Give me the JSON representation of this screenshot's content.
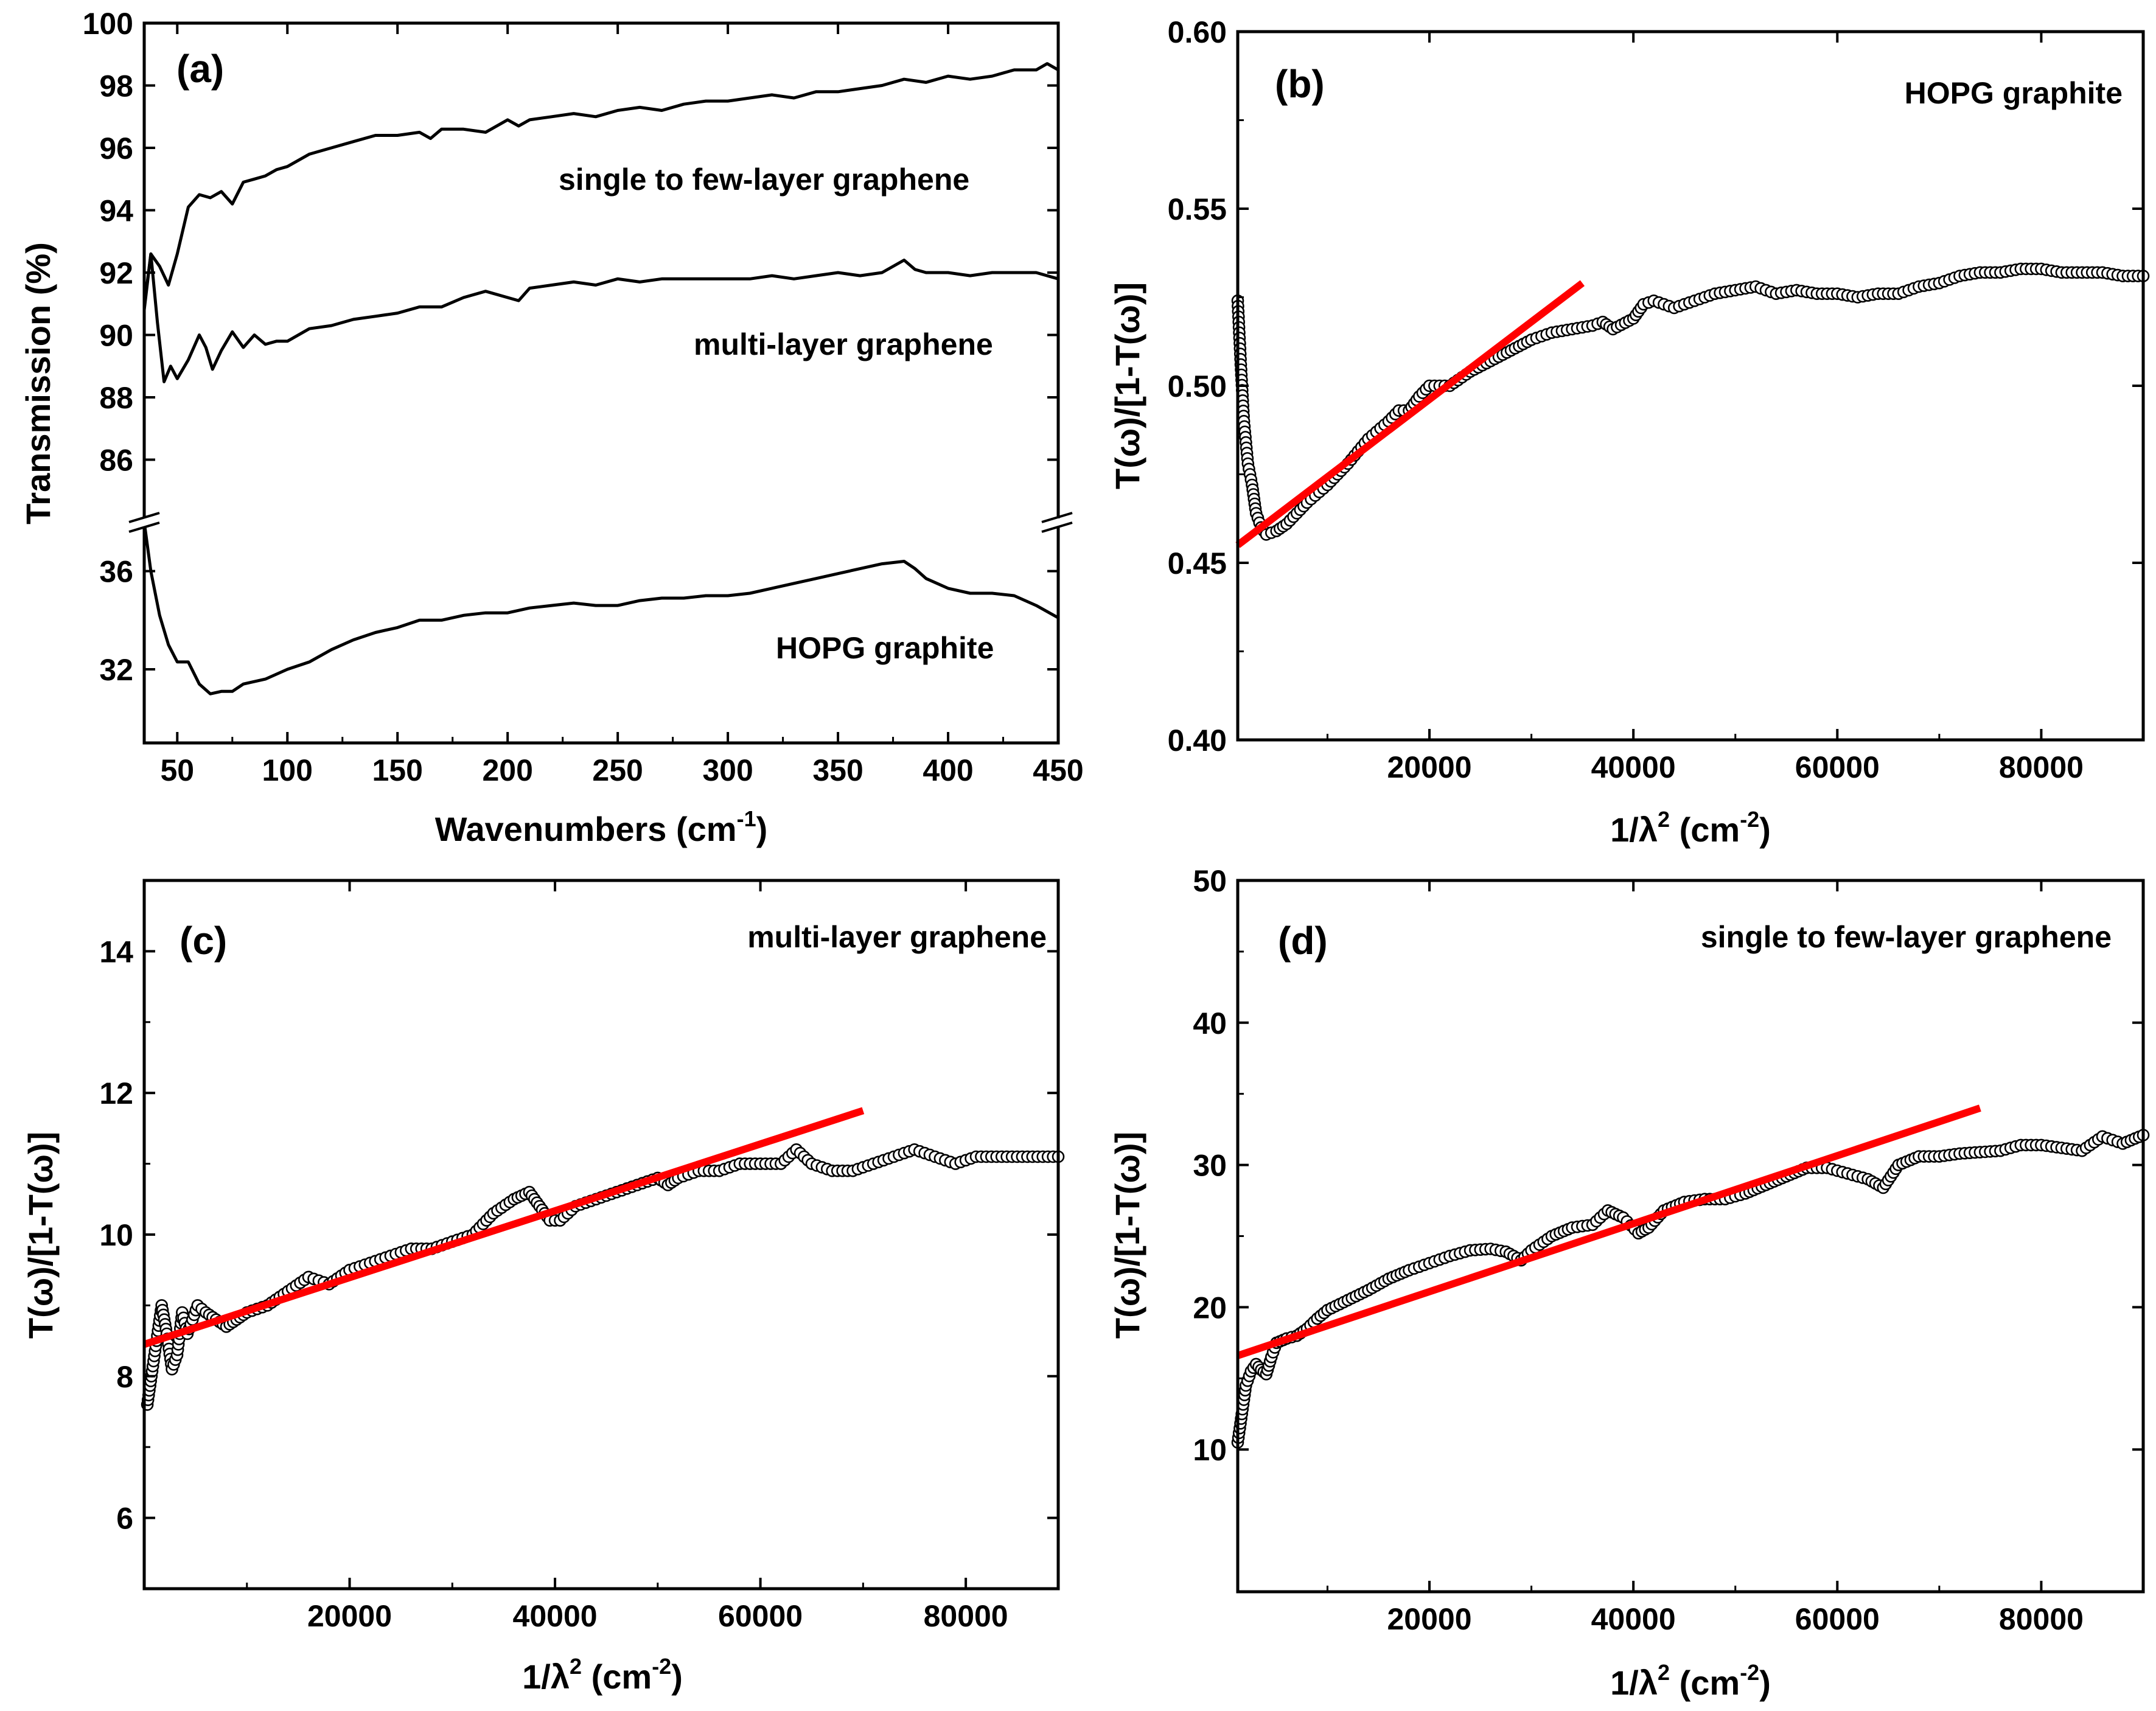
{
  "figure": {
    "colors": {
      "axis": "#000000",
      "data": "#000000",
      "fit": "#ff0000",
      "background": "#ffffff"
    }
  },
  "chart_data": [
    {
      "id": "a",
      "type": "line",
      "panel_label": "(a)",
      "xlabel": "Wavenumbers (cm",
      "xlabel_sup": "-1",
      "xlabel_end": ")",
      "ylabel": "Transmission (%)",
      "xlim": [
        35,
        450
      ],
      "ylim_upper": [
        84,
        100
      ],
      "ylim_lower": [
        29,
        38
      ],
      "broken_axis": true,
      "xticks": [
        "50",
        "100",
        "150",
        "200",
        "250",
        "300",
        "350",
        "400",
        "450"
      ],
      "yticks_upper": [
        "86",
        "88",
        "90",
        "92",
        "94",
        "96",
        "98",
        "100"
      ],
      "yticks_lower": [
        "32",
        "36"
      ],
      "series": [
        {
          "name": "single to few-layer graphene",
          "x": [
            35,
            38,
            42,
            46,
            50,
            55,
            60,
            65,
            70,
            75,
            80,
            85,
            90,
            95,
            100,
            110,
            120,
            130,
            140,
            150,
            160,
            165,
            170,
            180,
            190,
            200,
            205,
            210,
            220,
            230,
            240,
            250,
            260,
            270,
            280,
            290,
            300,
            310,
            320,
            330,
            340,
            350,
            360,
            370,
            380,
            390,
            400,
            410,
            420,
            430,
            440,
            445,
            450
          ],
          "y": [
            90.9,
            92.6,
            92.2,
            91.6,
            92.6,
            94.1,
            94.5,
            94.4,
            94.6,
            94.2,
            94.9,
            95.0,
            95.1,
            95.3,
            95.4,
            95.8,
            96.0,
            96.2,
            96.4,
            96.4,
            96.5,
            96.3,
            96.6,
            96.6,
            96.5,
            96.9,
            96.7,
            96.9,
            97.0,
            97.1,
            97.0,
            97.2,
            97.3,
            97.2,
            97.4,
            97.5,
            97.5,
            97.6,
            97.7,
            97.6,
            97.8,
            97.8,
            97.9,
            98.0,
            98.2,
            98.1,
            98.3,
            98.2,
            98.3,
            98.5,
            98.5,
            98.7,
            98.5
          ]
        },
        {
          "name": "multi-layer graphene",
          "x": [
            35,
            38,
            41,
            44,
            47,
            50,
            55,
            60,
            63,
            66,
            70,
            75,
            80,
            85,
            90,
            95,
            100,
            110,
            120,
            130,
            140,
            150,
            160,
            170,
            180,
            190,
            200,
            205,
            210,
            220,
            230,
            240,
            250,
            260,
            270,
            280,
            290,
            300,
            310,
            320,
            330,
            340,
            350,
            360,
            370,
            380,
            385,
            390,
            400,
            410,
            420,
            430,
            440,
            450
          ],
          "y": [
            90.8,
            92.6,
            90.4,
            88.5,
            89.0,
            88.6,
            89.2,
            90.0,
            89.6,
            88.9,
            89.5,
            90.1,
            89.6,
            90.0,
            89.7,
            89.8,
            89.8,
            90.2,
            90.3,
            90.5,
            90.6,
            90.7,
            90.9,
            90.9,
            91.2,
            91.4,
            91.2,
            91.1,
            91.5,
            91.6,
            91.7,
            91.6,
            91.8,
            91.7,
            91.8,
            91.8,
            91.8,
            91.8,
            91.8,
            91.9,
            91.8,
            91.9,
            92.0,
            91.9,
            92.0,
            92.4,
            92.1,
            92.0,
            92.0,
            91.9,
            92.0,
            92.0,
            92.0,
            91.8
          ]
        },
        {
          "name": "HOPG graphite",
          "x": [
            35,
            38,
            42,
            46,
            50,
            55,
            60,
            65,
            70,
            75,
            80,
            90,
            100,
            110,
            120,
            130,
            140,
            150,
            160,
            170,
            180,
            190,
            200,
            210,
            220,
            230,
            240,
            250,
            260,
            270,
            280,
            290,
            300,
            310,
            320,
            330,
            340,
            350,
            360,
            370,
            380,
            385,
            390,
            400,
            410,
            420,
            430,
            440,
            450
          ],
          "y": [
            38.0,
            36.0,
            34.2,
            33.0,
            32.3,
            32.3,
            31.4,
            31.0,
            31.1,
            31.1,
            31.4,
            31.6,
            32.0,
            32.3,
            32.8,
            33.2,
            33.5,
            33.7,
            34.0,
            34.0,
            34.2,
            34.3,
            34.3,
            34.5,
            34.6,
            34.7,
            34.6,
            34.6,
            34.8,
            34.9,
            34.9,
            35.0,
            35.0,
            35.1,
            35.3,
            35.5,
            35.7,
            35.9,
            36.1,
            36.3,
            36.4,
            36.1,
            35.7,
            35.3,
            35.1,
            35.1,
            35.0,
            34.6,
            34.1
          ]
        }
      ],
      "annotations": [
        "single to few-layer graphene",
        "multi-layer graphene",
        "HOPG graphite"
      ]
    },
    {
      "id": "b",
      "type": "scatter",
      "panel_label": "(b)",
      "title": "HOPG graphite",
      "xlabel": "1/λ",
      "xlabel_sup_mid": "2",
      "xlabel_end": " (cm",
      "xlabel_sup": "-2",
      "xlabel_end2": ")",
      "ylabel": "T(ω)/[1-T(ω)]",
      "xlim": [
        1200,
        90000
      ],
      "ylim": [
        0.4,
        0.6
      ],
      "xticks": [
        "20000",
        "40000",
        "60000",
        "80000"
      ],
      "xtick_values": [
        20000,
        40000,
        60000,
        80000
      ],
      "yticks": [
        "0.40",
        "0.45",
        "0.50",
        "0.55",
        "0.60"
      ],
      "ytick_values": [
        0.4,
        0.45,
        0.5,
        0.55,
        0.6
      ],
      "data_x": [
        1200,
        1500,
        1800,
        2200,
        2600,
        3000,
        3500,
        4000,
        5000,
        6000,
        7000,
        8000,
        10000,
        12000,
        14000,
        16000,
        17000,
        18000,
        19000,
        20000,
        22000,
        24000,
        26000,
        28000,
        30000,
        32000,
        34000,
        36000,
        37000,
        38000,
        40000,
        41000,
        42000,
        44000,
        46000,
        48000,
        50000,
        52000,
        54000,
        56000,
        58000,
        60000,
        62000,
        64000,
        66000,
        68000,
        70000,
        72000,
        74000,
        76000,
        78000,
        80000,
        82000,
        84000,
        86000,
        88000,
        90000
      ],
      "data_y": [
        0.524,
        0.506,
        0.49,
        0.478,
        0.472,
        0.464,
        0.46,
        0.458,
        0.459,
        0.461,
        0.464,
        0.467,
        0.472,
        0.478,
        0.485,
        0.49,
        0.493,
        0.493,
        0.497,
        0.5,
        0.5,
        0.504,
        0.507,
        0.51,
        0.513,
        0.515,
        0.516,
        0.517,
        0.518,
        0.516,
        0.519,
        0.523,
        0.524,
        0.522,
        0.524,
        0.526,
        0.527,
        0.528,
        0.526,
        0.527,
        0.526,
        0.526,
        0.525,
        0.526,
        0.526,
        0.528,
        0.529,
        0.531,
        0.532,
        0.532,
        0.533,
        0.533,
        0.532,
        0.532,
        0.532,
        0.531,
        0.531
      ],
      "fit": {
        "x": [
          1200,
          35000
        ],
        "y": [
          0.455,
          0.529
        ]
      }
    },
    {
      "id": "c",
      "type": "scatter",
      "panel_label": "(c)",
      "title": "multi-layer graphene",
      "xlabel": "1/λ",
      "xlabel_sup_mid": "2",
      "xlabel_end": " (cm",
      "xlabel_sup": "-2",
      "xlabel_end2": ")",
      "ylabel": "T(ω)/[1-T(ω)]",
      "xlim": [
        0,
        89000
      ],
      "ylim": [
        5,
        15
      ],
      "xticks": [
        "20000",
        "40000",
        "60000",
        "80000"
      ],
      "xtick_values": [
        20000,
        40000,
        60000,
        80000
      ],
      "yticks": [
        "6",
        "8",
        "10",
        "12",
        "14"
      ],
      "ytick_values": [
        6,
        8,
        10,
        12,
        14
      ],
      "data_x": [
        300,
        700,
        1200,
        1700,
        2200,
        2700,
        3200,
        3700,
        4200,
        4700,
        5200,
        6000,
        7000,
        8000,
        9000,
        10000,
        12000,
        14000,
        16000,
        18000,
        20000,
        22000,
        24000,
        26000,
        28000,
        30000,
        32000,
        34000,
        36000,
        37500,
        38500,
        39500,
        40500,
        42000,
        44000,
        46000,
        48000,
        50000,
        51000,
        52000,
        54000,
        56000,
        58000,
        60000,
        62000,
        63500,
        65000,
        67000,
        69000,
        71000,
        73000,
        75000,
        77000,
        79000,
        81000,
        83000,
        85000,
        87000,
        89000
      ],
      "data_y": [
        7.6,
        8.0,
        8.5,
        9.0,
        8.6,
        8.1,
        8.3,
        8.9,
        8.6,
        8.8,
        9.0,
        8.9,
        8.8,
        8.7,
        8.8,
        8.9,
        9.0,
        9.2,
        9.4,
        9.3,
        9.5,
        9.6,
        9.7,
        9.8,
        9.8,
        9.9,
        10.0,
        10.3,
        10.5,
        10.6,
        10.4,
        10.2,
        10.2,
        10.4,
        10.5,
        10.6,
        10.7,
        10.8,
        10.7,
        10.8,
        10.9,
        10.9,
        11.0,
        11.0,
        11.0,
        11.2,
        11.0,
        10.9,
        10.9,
        11.0,
        11.1,
        11.2,
        11.1,
        11.0,
        11.1,
        11.1,
        11.1,
        11.1,
        11.1
      ],
      "fit": {
        "x": [
          0,
          70000
        ],
        "y": [
          8.45,
          11.75
        ]
      }
    },
    {
      "id": "d",
      "type": "scatter",
      "panel_label": "(d)",
      "title": "single to few-layer graphene",
      "xlabel": "1/λ",
      "xlabel_sup_mid": "2",
      "xlabel_end": " (cm",
      "xlabel_sup": "-2",
      "xlabel_end2": ")",
      "ylabel": "T(ω)/[1-T(ω)]",
      "xlim": [
        1200,
        90000
      ],
      "ylim": [
        0,
        50
      ],
      "xticks": [
        "20000",
        "40000",
        "60000",
        "80000"
      ],
      "xtick_values": [
        20000,
        40000,
        60000,
        80000
      ],
      "yticks": [
        "10",
        "20",
        "30",
        "40",
        "50"
      ],
      "ytick_values": [
        10,
        20,
        30,
        40,
        50
      ],
      "data_x": [
        1200,
        1600,
        2000,
        2500,
        3000,
        3500,
        4000,
        4500,
        5000,
        6000,
        7000,
        8000,
        9000,
        10000,
        12000,
        14000,
        16000,
        18000,
        20000,
        22000,
        24000,
        26000,
        27500,
        29000,
        30000,
        32000,
        34000,
        36000,
        37500,
        39000,
        40500,
        41500,
        43000,
        45000,
        47000,
        49000,
        51000,
        53000,
        55000,
        57000,
        59000,
        61000,
        63000,
        64500,
        66000,
        68000,
        70000,
        72000,
        74000,
        76000,
        78000,
        80000,
        82000,
        84000,
        86000,
        88000,
        90000
      ],
      "data_y": [
        10.5,
        12.5,
        14.5,
        15.5,
        16.0,
        15.6,
        15.3,
        16.5,
        17.5,
        17.8,
        18.0,
        18.5,
        19.2,
        19.8,
        20.5,
        21.2,
        22.0,
        22.6,
        23.1,
        23.6,
        24.0,
        24.1,
        23.9,
        23.3,
        24.0,
        25.0,
        25.6,
        25.8,
        26.8,
        26.3,
        25.2,
        25.6,
        26.8,
        27.4,
        27.6,
        27.6,
        28.0,
        28.6,
        29.2,
        29.8,
        29.8,
        29.4,
        29.0,
        28.4,
        30.0,
        30.6,
        30.6,
        30.8,
        30.9,
        31.0,
        31.4,
        31.4,
        31.2,
        31.0,
        32.0,
        31.5,
        32.1
      ],
      "fit": {
        "x": [
          1200,
          74000
        ],
        "y": [
          16.6,
          34.0
        ]
      }
    }
  ]
}
